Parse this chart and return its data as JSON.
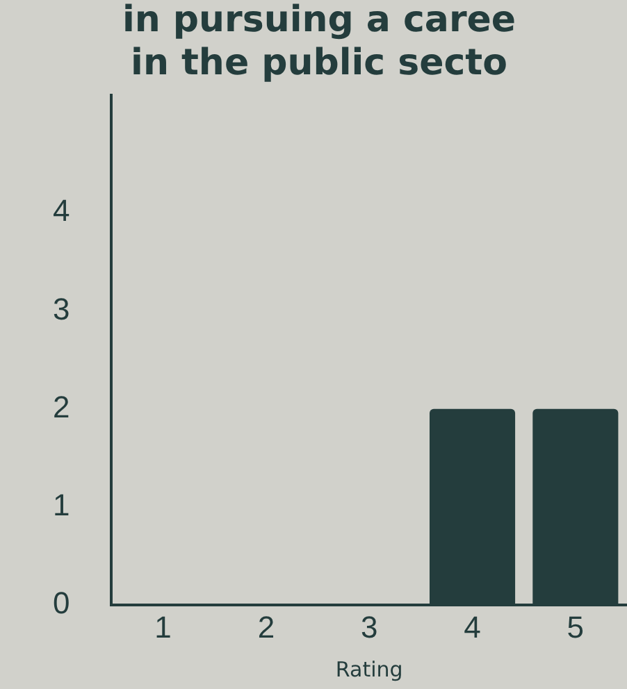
{
  "chart_data": {
    "type": "bar",
    "title": "in pursuing a caree\nin the public secto",
    "categories": [
      "1",
      "2",
      "3",
      "4",
      "5"
    ],
    "values": [
      0,
      0,
      0,
      2,
      2
    ],
    "color": "#243d3d",
    "xlabel": "Rating",
    "ylim": [
      0,
      5.2
    ],
    "yticks": [
      0,
      1,
      2,
      3,
      4
    ],
    "grid": false,
    "legend": false
  }
}
